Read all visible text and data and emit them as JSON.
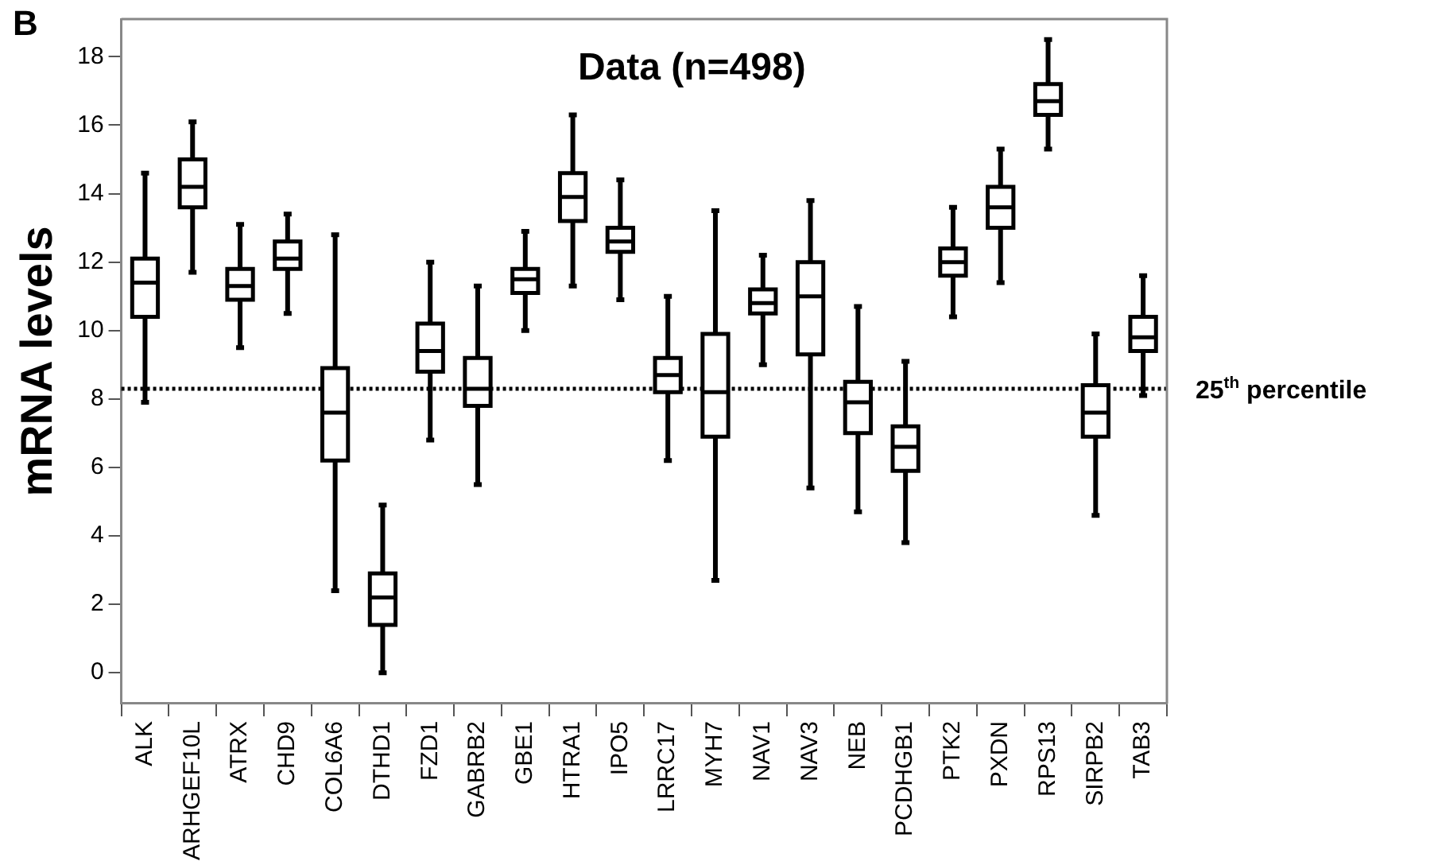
{
  "chart_data": {
    "type": "box",
    "title": "Data (n=498)",
    "ylabel": "mRNA levels",
    "annotations": [
      "B"
    ],
    "categories": [
      "ALK",
      "ARHGEF10L",
      "ATRX",
      "CHD9",
      "COL6A6",
      "DTHD1",
      "FZD1",
      "GABRB2",
      "GBE1",
      "HTRA1",
      "IPO5",
      "LRRC17",
      "MYH7",
      "NAV1",
      "NAV3",
      "NEB",
      "PCDHGB1",
      "PTK2",
      "PXDN",
      "RPS13",
      "SIRPB2",
      "TAB3"
    ],
    "boxes": [
      {
        "low": 7.9,
        "q1": 10.4,
        "median": 11.4,
        "q3": 12.1,
        "high": 14.6
      },
      {
        "low": 11.7,
        "q1": 13.6,
        "median": 14.2,
        "q3": 15.0,
        "high": 16.1
      },
      {
        "low": 9.5,
        "q1": 10.9,
        "median": 11.3,
        "q3": 11.8,
        "high": 13.1
      },
      {
        "low": 10.5,
        "q1": 11.8,
        "median": 12.1,
        "q3": 12.6,
        "high": 13.4
      },
      {
        "low": 2.4,
        "q1": 6.2,
        "median": 7.6,
        "q3": 8.9,
        "high": 12.8
      },
      {
        "low": 0,
        "q1": 1.4,
        "median": 2.2,
        "q3": 2.9,
        "high": 4.9
      },
      {
        "low": 6.8,
        "q1": 8.8,
        "median": 9.4,
        "q3": 10.2,
        "high": 12.0
      },
      {
        "low": 5.5,
        "q1": 7.8,
        "median": 8.3,
        "q3": 9.2,
        "high": 11.3
      },
      {
        "low": 10.0,
        "q1": 11.1,
        "median": 11.5,
        "q3": 11.8,
        "high": 12.9
      },
      {
        "low": 11.3,
        "q1": 13.2,
        "median": 13.9,
        "q3": 14.6,
        "high": 16.3
      },
      {
        "low": 10.9,
        "q1": 12.3,
        "median": 12.6,
        "q3": 13.0,
        "high": 14.4
      },
      {
        "low": 6.2,
        "q1": 8.2,
        "median": 8.7,
        "q3": 9.2,
        "high": 11.0
      },
      {
        "low": 2.7,
        "q1": 6.9,
        "median": 8.2,
        "q3": 9.9,
        "high": 13.5
      },
      {
        "low": 9.0,
        "q1": 10.5,
        "median": 10.8,
        "q3": 11.2,
        "high": 12.2
      },
      {
        "low": 5.4,
        "q1": 9.3,
        "median": 11.0,
        "q3": 12.0,
        "high": 13.8
      },
      {
        "low": 4.7,
        "q1": 7.0,
        "median": 7.9,
        "q3": 8.5,
        "high": 10.7
      },
      {
        "low": 3.8,
        "q1": 5.9,
        "median": 6.6,
        "q3": 7.2,
        "high": 9.1
      },
      {
        "low": 10.4,
        "q1": 11.6,
        "median": 12.0,
        "q3": 12.4,
        "high": 13.6
      },
      {
        "low": 11.4,
        "q1": 13.0,
        "median": 13.6,
        "q3": 14.2,
        "high": 15.3
      },
      {
        "low": 15.3,
        "q1": 16.3,
        "median": 16.7,
        "q3": 17.2,
        "high": 18.5
      },
      {
        "low": 4.6,
        "q1": 6.9,
        "median": 7.6,
        "q3": 8.4,
        "high": 9.9
      },
      {
        "low": 8.1,
        "q1": 9.4,
        "median": 9.8,
        "q3": 10.4,
        "high": 11.6
      }
    ],
    "color": "#000000",
    "ylim": [
      -0.9,
      19.1
    ],
    "yticks": [
      0,
      2,
      4,
      6,
      8,
      10,
      12,
      14,
      16,
      18
    ],
    "ref_lines": [
      {
        "axis": "y",
        "value": 8.3,
        "label": "25$^{th}$ percentile",
        "line_style": "dotted",
        "color": "#000000"
      }
    ],
    "grid": false,
    "legend": false
  }
}
